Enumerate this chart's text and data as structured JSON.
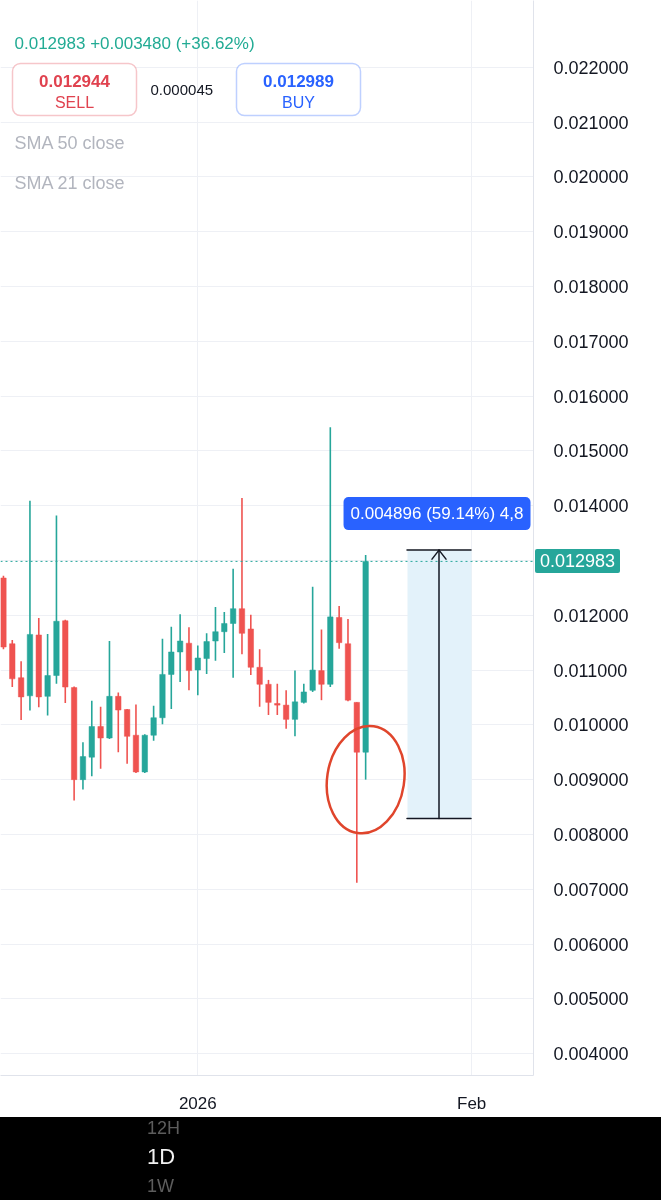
{
  "chart_data": {
    "type": "candlestick",
    "x": [
      "2025-12-10",
      "2025-12-11",
      "2025-12-12",
      "2025-12-13",
      "2025-12-14",
      "2025-12-15",
      "2025-12-16",
      "2025-12-17",
      "2025-12-18",
      "2025-12-19",
      "2025-12-20",
      "2025-12-21",
      "2025-12-22",
      "2025-12-23",
      "2025-12-24",
      "2025-12-25",
      "2025-12-26",
      "2025-12-27",
      "2025-12-28",
      "2025-12-29",
      "2025-12-30",
      "2025-12-31",
      "2026-01-01",
      "2026-01-02",
      "2026-01-03",
      "2026-01-04",
      "2026-01-05",
      "2026-01-06",
      "2026-01-07",
      "2026-01-08",
      "2026-01-09",
      "2026-01-10",
      "2026-01-11",
      "2026-01-12",
      "2026-01-13",
      "2026-01-14",
      "2026-01-15",
      "2026-01-16",
      "2026-01-17",
      "2026-01-18",
      "2026-01-19",
      "2026-01-20"
    ],
    "ohlc": [
      [
        0.01268,
        0.01272,
        0.01138,
        0.01142
      ],
      [
        0.01148,
        0.01155,
        0.01069,
        0.01084
      ],
      [
        0.01086,
        0.01116,
        0.01009,
        0.01051
      ],
      [
        0.01053,
        0.01409,
        0.01026,
        0.01165
      ],
      [
        0.01164,
        0.01195,
        0.01032,
        0.01051
      ],
      [
        0.01052,
        0.01166,
        0.01017,
        0.0109
      ],
      [
        0.0109,
        0.01382,
        0.01075,
        0.01189
      ],
      [
        0.0119,
        0.01192,
        0.0104,
        0.01069
      ],
      [
        0.01068,
        0.0107,
        0.00862,
        0.009
      ],
      [
        0.009,
        0.00968,
        0.00882,
        0.00942
      ],
      [
        0.00941,
        0.01044,
        0.00906,
        0.00997
      ],
      [
        0.00997,
        0.01033,
        0.0092,
        0.00976
      ],
      [
        0.00976,
        0.01153,
        0.00974,
        0.01052
      ],
      [
        0.01052,
        0.01059,
        0.0095,
        0.01027
      ],
      [
        0.01028,
        0.01029,
        0.00929,
        0.00979
      ],
      [
        0.00981,
        0.01037,
        0.00912,
        0.00914
      ],
      [
        0.00914,
        0.00983,
        0.00912,
        0.00981
      ],
      [
        0.00981,
        0.01035,
        0.00971,
        0.01013
      ],
      [
        0.01013,
        0.01157,
        0.01001,
        0.01092
      ],
      [
        0.01092,
        0.01179,
        0.01029,
        0.01133
      ],
      [
        0.01133,
        0.01202,
        0.01078,
        0.01153
      ],
      [
        0.01149,
        0.01178,
        0.01063,
        0.01099
      ],
      [
        0.011,
        0.01145,
        0.01054,
        0.01122
      ],
      [
        0.01121,
        0.01167,
        0.01093,
        0.01152
      ],
      [
        0.01153,
        0.01215,
        0.01117,
        0.0117
      ],
      [
        0.0117,
        0.01206,
        0.01131,
        0.01185
      ],
      [
        0.01185,
        0.01285,
        0.01086,
        0.01212
      ],
      [
        0.01212,
        0.01414,
        0.01129,
        0.01167
      ],
      [
        0.01175,
        0.01201,
        0.01091,
        0.01105
      ],
      [
        0.01105,
        0.01138,
        0.01033,
        0.01074
      ],
      [
        0.01074,
        0.01082,
        0.01018,
        0.01041
      ],
      [
        0.01039,
        0.01075,
        0.01018,
        0.01036
      ],
      [
        0.01036,
        0.01063,
        0.00993,
        0.0101
      ],
      [
        0.0101,
        0.01099,
        0.00979,
        0.01042
      ],
      [
        0.01041,
        0.01075,
        0.01039,
        0.0106
      ],
      [
        0.01063,
        0.01252,
        0.0106,
        0.011
      ],
      [
        0.01099,
        0.01174,
        0.01045,
        0.01074
      ],
      [
        0.01074,
        0.01543,
        0.01069,
        0.01197
      ],
      [
        0.01196,
        0.01217,
        0.01139,
        0.0115
      ],
      [
        0.01148,
        0.01193,
        0.01043,
        0.01045
      ],
      [
        0.01041,
        0.01041,
        0.00712,
        0.0095
      ],
      [
        0.0095,
        0.0131,
        0.009,
        0.012983
      ]
    ],
    "colors": [
      "#ef5350",
      "#ef5350",
      "#ef5350",
      "#26a69a",
      "#ef5350",
      "#26a69a",
      "#26a69a",
      "#ef5350",
      "#ef5350",
      "#26a69a",
      "#26a69a",
      "#ef5350",
      "#26a69a",
      "#ef5350",
      "#ef5350",
      "#ef5350",
      "#26a69a",
      "#26a69a",
      "#26a69a",
      "#26a69a",
      "#26a69a",
      "#ef5350",
      "#26a69a",
      "#26a69a",
      "#26a69a",
      "#26a69a",
      "#26a69a",
      "#ef5350",
      "#ef5350",
      "#ef5350",
      "#ef5350",
      "#ef5350",
      "#ef5350",
      "#26a69a",
      "#26a69a",
      "#26a69a",
      "#ef5350",
      "#26a69a",
      "#ef5350",
      "#ef5350",
      "#ef5350",
      "#26a69a"
    ],
    "xlim": [
      "2025-12-09T16:00",
      "2026-02-08"
    ],
    "xticks": [
      {
        "value": "2026-01-01",
        "label": "2026"
      },
      {
        "value": "2026-02-01",
        "label": "Feb"
      }
    ],
    "ylim": [
      0.0036,
      0.02322
    ],
    "yticks": [
      {
        "value": 0.004,
        "label": "0.004000"
      },
      {
        "value": 0.005,
        "label": "0.005000"
      },
      {
        "value": 0.006,
        "label": "0.006000"
      },
      {
        "value": 0.007,
        "label": "0.007000"
      },
      {
        "value": 0.008,
        "label": "0.008000"
      },
      {
        "value": 0.009,
        "label": "0.009000"
      },
      {
        "value": 0.01,
        "label": "0.010000"
      },
      {
        "value": 0.011,
        "label": "0.011000"
      },
      {
        "value": 0.012,
        "label": "0.012000"
      },
      {
        "value": 0.013,
        "label": null
      },
      {
        "value": 0.014,
        "label": "0.014000"
      },
      {
        "value": 0.015,
        "label": "0.015000"
      },
      {
        "value": 0.016,
        "label": "0.016000"
      },
      {
        "value": 0.017,
        "label": "0.017000"
      },
      {
        "value": 0.018,
        "label": "0.018000"
      },
      {
        "value": 0.019,
        "label": "0.019000"
      },
      {
        "value": 0.02,
        "label": "0.020000"
      },
      {
        "value": 0.021,
        "label": "0.021000"
      },
      {
        "value": 0.022,
        "label": "0.022000"
      }
    ],
    "grid": true,
    "ref_lines": [
      {
        "axis": "y",
        "value": 0.012983,
        "label": "0.012983",
        "color": "#26a69a",
        "line_style": "dotted"
      }
    ],
    "bands": [
      {
        "axis": "y",
        "from": 0.00828,
        "to": 0.01318,
        "label": "0.004896 (59.14%) 4,8",
        "color": "#e3f2fa"
      }
    ],
    "annotations": [
      "0.012983 +0.003480 (+36.62%)",
      "0.012944",
      "SELL",
      "0.000045",
      "0.012989",
      "BUY",
      "SMA 50 close",
      "SMA 21 close",
      "12H",
      "1D",
      "1W"
    ]
  }
}
